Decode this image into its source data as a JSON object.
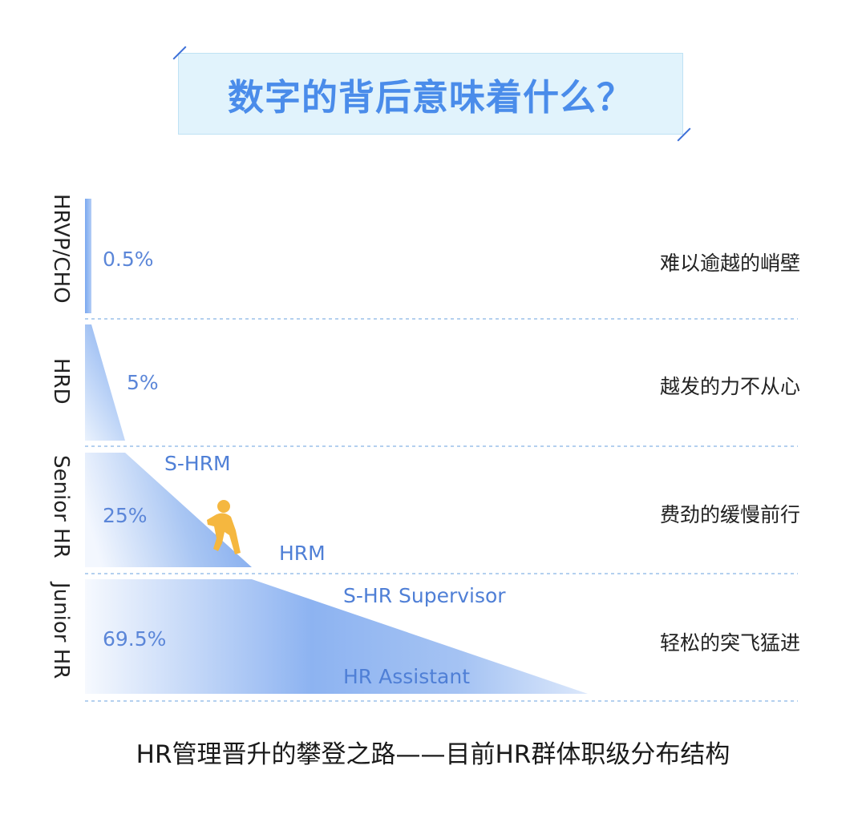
{
  "header": {
    "title": "数字的背后意味着什么？"
  },
  "colors": {
    "accent": "#4a8cea",
    "title_bg": "#e1f3fc",
    "fill": "#7aa8f0",
    "divider": "#9cc0ea",
    "climber": "#f5b73f"
  },
  "rows": [
    {
      "level": "HRVP/CHO",
      "percent": "0.5%",
      "description": "难以逾越的峭壁",
      "titles": []
    },
    {
      "level": "HRD",
      "percent": "5%",
      "description": "越发的力不从心",
      "titles": []
    },
    {
      "level": "Senior HR",
      "percent": "25%",
      "description": "费劲的缓慢前行",
      "titles": [
        "S-HRM",
        "HRM"
      ]
    },
    {
      "level": "Junior HR",
      "percent": "69.5%",
      "description": "轻松的突飞猛进",
      "titles": [
        "S-HR Supervisor",
        "HR Assistant"
      ]
    }
  ],
  "caption": "HR管理晋升的攀登之路——目前HR群体职级分布结构",
  "icons": {
    "climber": "person-climbing-icon"
  }
}
